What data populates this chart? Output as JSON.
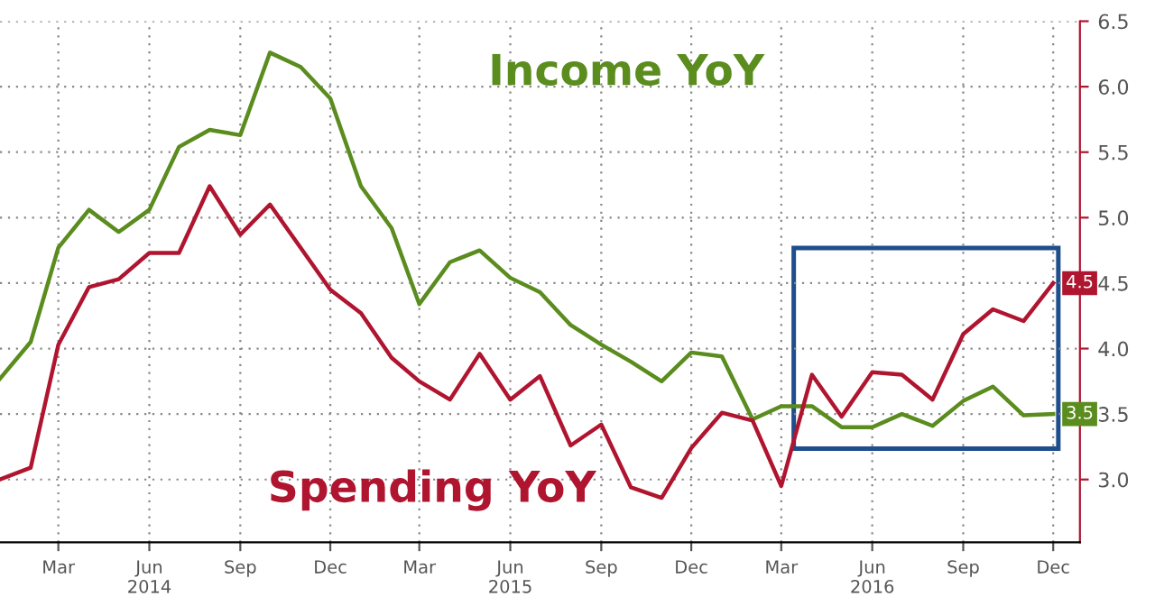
{
  "chart_data": {
    "type": "line",
    "x": [
      "2014-01",
      "2014-02",
      "2014-03",
      "2014-04",
      "2014-05",
      "2014-06",
      "2014-07",
      "2014-08",
      "2014-09",
      "2014-10",
      "2014-11",
      "2014-12",
      "2015-01",
      "2015-02",
      "2015-03",
      "2015-04",
      "2015-05",
      "2015-06",
      "2015-07",
      "2015-08",
      "2015-09",
      "2015-10",
      "2015-11",
      "2015-12",
      "2016-01",
      "2016-02",
      "2016-03",
      "2016-04",
      "2016-05",
      "2016-06",
      "2016-07",
      "2016-08",
      "2016-09",
      "2016-10",
      "2016-11",
      "2016-12"
    ],
    "series": [
      {
        "name": "Income YoY",
        "color": "#5a8c1e",
        "values": [
          3.77,
          4.05,
          4.77,
          5.06,
          4.89,
          5.06,
          5.54,
          5.67,
          5.63,
          6.26,
          6.15,
          5.91,
          5.24,
          4.92,
          4.34,
          4.66,
          4.75,
          4.54,
          4.43,
          4.18,
          4.03,
          3.9,
          3.75,
          3.97,
          3.94,
          3.46,
          3.56,
          3.56,
          3.4,
          3.4,
          3.5,
          3.41,
          3.6,
          3.71,
          3.49,
          3.5
        ],
        "value_labels": [
          null,
          null,
          null,
          null,
          null,
          null,
          null,
          null,
          null,
          null,
          null,
          null,
          null,
          null,
          null,
          null,
          null,
          null,
          null,
          null,
          null,
          null,
          null,
          null,
          null,
          null,
          null,
          null,
          null,
          null,
          null,
          null,
          null,
          null,
          null,
          "3.5"
        ]
      },
      {
        "name": "Spending YoY",
        "color": "#b01530",
        "values": [
          3.0,
          3.09,
          4.03,
          4.47,
          4.53,
          4.73,
          4.73,
          5.24,
          4.87,
          5.1,
          4.77,
          4.45,
          4.27,
          3.93,
          3.75,
          3.61,
          3.96,
          3.61,
          3.79,
          3.26,
          3.42,
          2.94,
          2.86,
          3.24,
          3.51,
          3.45,
          2.95,
          3.8,
          3.48,
          3.82,
          3.8,
          3.61,
          4.11,
          4.3,
          4.21,
          4.5
        ],
        "value_labels": [
          null,
          null,
          null,
          null,
          null,
          null,
          null,
          null,
          null,
          null,
          null,
          null,
          null,
          null,
          null,
          null,
          null,
          null,
          null,
          null,
          null,
          null,
          null,
          null,
          null,
          null,
          null,
          null,
          null,
          null,
          null,
          null,
          null,
          null,
          null,
          "4.5"
        ]
      }
    ],
    "xlim": [
      "2014-01-01",
      "2016-12-28"
    ],
    "xticks": [
      {
        "value": "2014-03",
        "label": "Mar"
      },
      {
        "value": "2014-06",
        "label": "Jun\n2014"
      },
      {
        "value": "2014-09",
        "label": "Sep"
      },
      {
        "value": "2014-12",
        "label": "Dec"
      },
      {
        "value": "2015-03",
        "label": "Mar"
      },
      {
        "value": "2015-06",
        "label": "Jun\n2015"
      },
      {
        "value": "2015-09",
        "label": "Sep"
      },
      {
        "value": "2015-12",
        "label": "Dec"
      },
      {
        "value": "2016-03",
        "label": "Mar"
      },
      {
        "value": "2016-06",
        "label": "Jun\n2016"
      },
      {
        "value": "2016-09",
        "label": "Sep"
      },
      {
        "value": "2016-12",
        "label": "Dec"
      }
    ],
    "ylim": [
      2.52,
      6.5
    ],
    "yticks": [
      {
        "value": 3,
        "label": "3.0"
      },
      {
        "value": 3.5,
        "label": "3.5"
      },
      {
        "value": 4,
        "label": "4.0"
      },
      {
        "value": 4.5,
        "label": "4.5"
      },
      {
        "value": 5,
        "label": "5.0"
      },
      {
        "value": 5.5,
        "label": "5.5"
      },
      {
        "value": 6,
        "label": "6.0"
      },
      {
        "value": 6.5,
        "label": "6.5"
      }
    ],
    "grid": true,
    "legend": false,
    "marker": "none",
    "line_style": "solid"
  }
}
